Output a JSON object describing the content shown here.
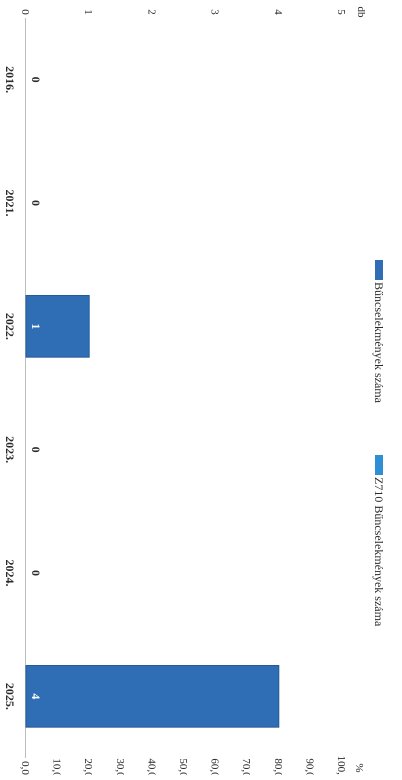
{
  "chart_data": {
    "type": "bar",
    "orientation": "rotated-90-clockwise",
    "categories": [
      "2016.",
      "2021.",
      "2022.",
      "2023.",
      "2024.",
      "2025."
    ],
    "series": [
      {
        "name": "Bűncselekmények száma",
        "axis": "primary",
        "color": "#2f6db5",
        "values": [
          0,
          0,
          1,
          0,
          0,
          4
        ],
        "labels": [
          "0",
          "0",
          "1",
          "0",
          "0",
          "4"
        ]
      },
      {
        "name": "Z710 Bűncselekmények száma",
        "axis": "secondary",
        "color": "#2e8fd4",
        "values": [
          0,
          0,
          0,
          0,
          0,
          0
        ]
      }
    ],
    "primary_axis": {
      "unit": "db",
      "range": [
        0,
        5
      ],
      "ticks": [
        "0",
        "1",
        "2",
        "3",
        "4",
        "5"
      ]
    },
    "secondary_axis": {
      "unit": "%",
      "range": [
        0,
        100
      ],
      "ticks": [
        "0,0",
        "10,0",
        "20,0",
        "30,0",
        "40,0",
        "50,0",
        "60,0",
        "70,0",
        "80,0",
        "90,0",
        "100,0"
      ]
    },
    "legend_position": "top",
    "grid": false
  }
}
